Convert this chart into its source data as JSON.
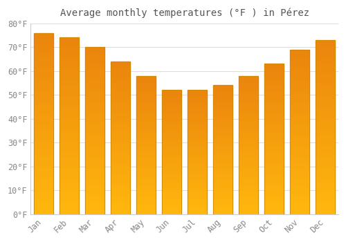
{
  "title": "Average monthly temperatures (°F ) in Pérez",
  "months": [
    "Jan",
    "Feb",
    "Mar",
    "Apr",
    "May",
    "Jun",
    "Jul",
    "Aug",
    "Sep",
    "Oct",
    "Nov",
    "Dec"
  ],
  "values": [
    76,
    74,
    70,
    64,
    58,
    52,
    52,
    54,
    58,
    63,
    69,
    73
  ],
  "bar_color_top": "#FFA500",
  "bar_color_bottom": "#FFD060",
  "bar_edge_color": "#CC8800",
  "background_color": "#FFFFFF",
  "grid_color": "#DDDDDD",
  "text_color": "#888888",
  "title_color": "#555555",
  "ylim": [
    0,
    80
  ],
  "ytick_step": 10,
  "title_fontsize": 10,
  "tick_fontsize": 8.5,
  "bar_width": 0.75
}
